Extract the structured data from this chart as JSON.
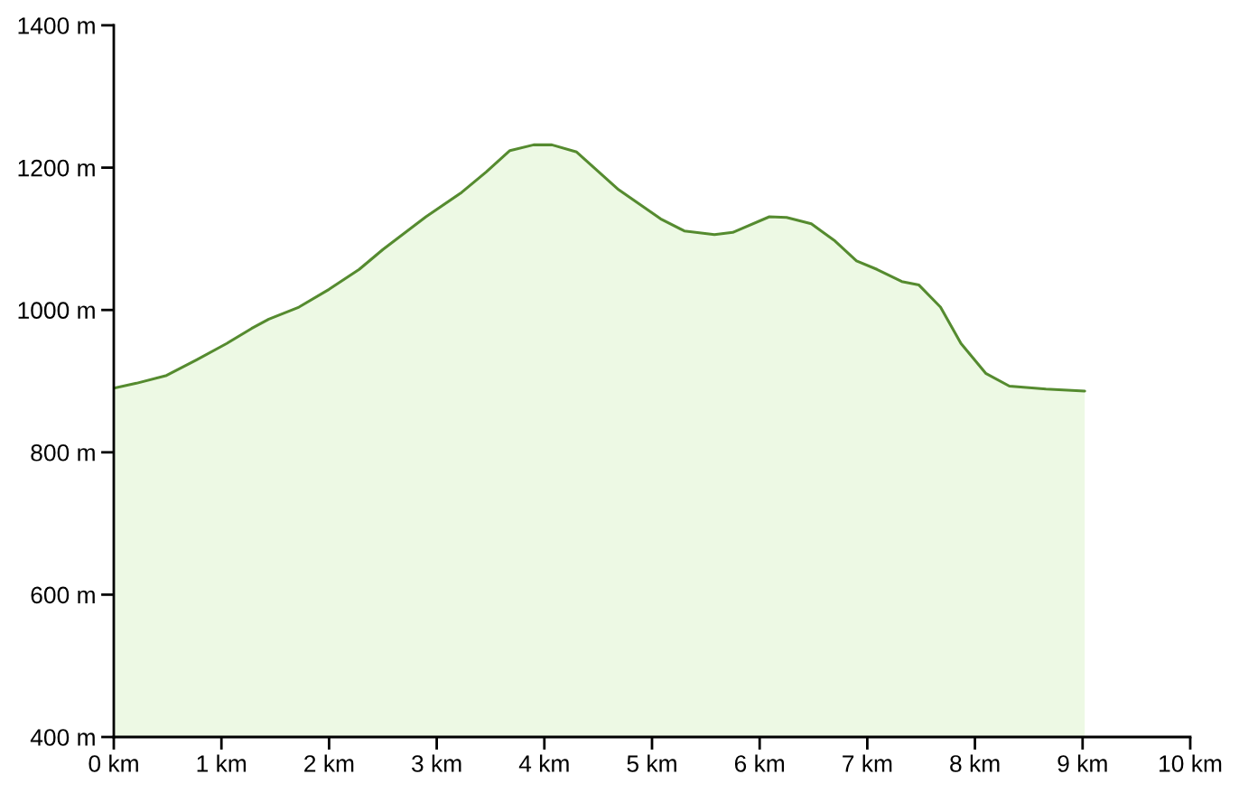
{
  "chart_data": {
    "type": "area",
    "x": [
      0,
      0.21,
      0.49,
      0.77,
      1.05,
      1.28,
      1.44,
      1.72,
      2.0,
      2.28,
      2.5,
      2.9,
      3.23,
      3.46,
      3.68,
      3.9,
      4.07,
      4.3,
      4.69,
      5.08,
      5.3,
      5.58,
      5.75,
      6.09,
      6.25,
      6.48,
      6.7,
      6.9,
      7.09,
      7.32,
      7.48,
      7.68,
      7.87,
      8.1,
      8.32,
      8.66,
      9.02
    ],
    "series": [
      {
        "color": "#558b2f",
        "values": [
          890,
          897,
          908,
          930,
          953,
          974,
          987,
          1004,
          1029,
          1057,
          1085,
          1131,
          1165,
          1194,
          1224,
          1232,
          1232,
          1222,
          1169,
          1128,
          1111,
          1106,
          1109,
          1131,
          1130,
          1121,
          1097,
          1069,
          1057,
          1040,
          1035,
          1004,
          953,
          911,
          893,
          889,
          886
        ]
      }
    ],
    "xlim": [
      0,
      10
    ],
    "xticks": [
      {
        "value": 0,
        "label": "0 km"
      },
      {
        "value": 1,
        "label": "1 km"
      },
      {
        "value": 2,
        "label": "2 km"
      },
      {
        "value": 3,
        "label": "3 km"
      },
      {
        "value": 4,
        "label": "4 km"
      },
      {
        "value": 5,
        "label": "5 km"
      },
      {
        "value": 6,
        "label": "6 km"
      },
      {
        "value": 7,
        "label": "7 km"
      },
      {
        "value": 8,
        "label": "8 km"
      },
      {
        "value": 9,
        "label": "9 km"
      },
      {
        "value": 10,
        "label": "10 km"
      }
    ],
    "ylim": [
      400,
      1400
    ],
    "yticks": [
      {
        "value": 400,
        "label": "400 m"
      },
      {
        "value": 600,
        "label": "600 m"
      },
      {
        "value": 800,
        "label": "800 m"
      },
      {
        "value": 1000,
        "label": "1000 m"
      },
      {
        "value": 1200,
        "label": "1200 m"
      },
      {
        "value": 1400,
        "label": "1400 m"
      }
    ],
    "grid": false
  }
}
